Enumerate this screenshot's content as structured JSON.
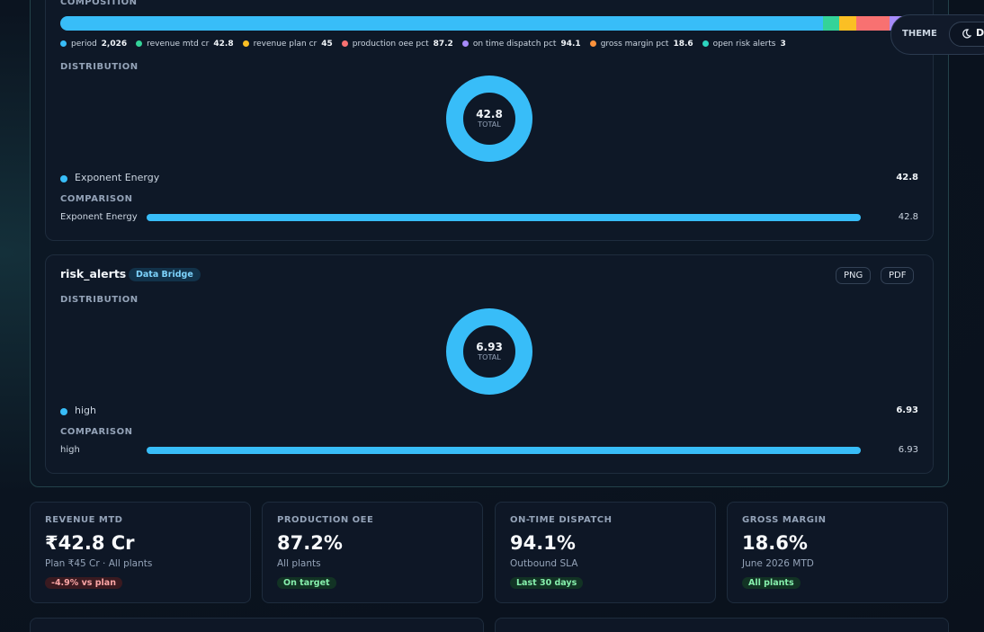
{
  "theme": {
    "label": "THEME",
    "button": "D"
  },
  "card_top": {
    "composition": {
      "label": "COMPOSITION",
      "items": [
        {
          "name": "period",
          "value": 2026,
          "value_label": "2,026",
          "color": "#38bdf8"
        },
        {
          "name": "revenue mtd cr",
          "value": 42.8,
          "color": "#34d399"
        },
        {
          "name": "revenue plan cr",
          "value": 45,
          "color": "#fbbf24"
        },
        {
          "name": "production oee pct",
          "value": 87.2,
          "color": "#f87171"
        },
        {
          "name": "on time dispatch pct",
          "value": 94.1,
          "color": "#a78bfa"
        },
        {
          "name": "gross margin pct",
          "value": 18.6,
          "color": "#fb923c"
        },
        {
          "name": "open risk alerts",
          "value": 3,
          "color": "#2dd4bf"
        }
      ]
    },
    "distribution": {
      "label": "DISTRIBUTION",
      "total": 42.8,
      "total_label": "TOTAL",
      "items": [
        {
          "name": "Exponent Energy",
          "value": 42.8,
          "color": "#38bdf8"
        }
      ]
    },
    "comparison": {
      "label": "COMPARISON",
      "items": [
        {
          "name": "Exponent Energy",
          "value": 42.8,
          "color": "#38bdf8"
        }
      ]
    }
  },
  "card_risk": {
    "title": "risk_alerts",
    "badge": "Data Bridge",
    "buttons": [
      "PNG",
      "PDF"
    ],
    "distribution": {
      "label": "DISTRIBUTION",
      "total": 6.93,
      "total_label": "TOTAL",
      "items": [
        {
          "name": "high",
          "value": 6.93,
          "color": "#38bdf8"
        }
      ]
    },
    "comparison": {
      "label": "COMPARISON",
      "items": [
        {
          "name": "high",
          "value": 6.93,
          "color": "#38bdf8"
        }
      ]
    }
  },
  "kpis": [
    {
      "label": "REVENUE MTD",
      "value": "₹42.8 Cr",
      "sub": "Plan ₹45 Cr · All plants",
      "badge": "-4.9% vs plan",
      "tone": "bad"
    },
    {
      "label": "PRODUCTION OEE",
      "value": "87.2%",
      "sub": "All plants",
      "badge": "On target",
      "tone": "good"
    },
    {
      "label": "ON-TIME DISPATCH",
      "value": "94.1%",
      "sub": "Outbound SLA",
      "badge": "Last 30 days",
      "tone": "good"
    },
    {
      "label": "GROSS MARGIN",
      "value": "18.6%",
      "sub": "June 2026 MTD",
      "badge": "All plants",
      "tone": "good"
    }
  ]
}
